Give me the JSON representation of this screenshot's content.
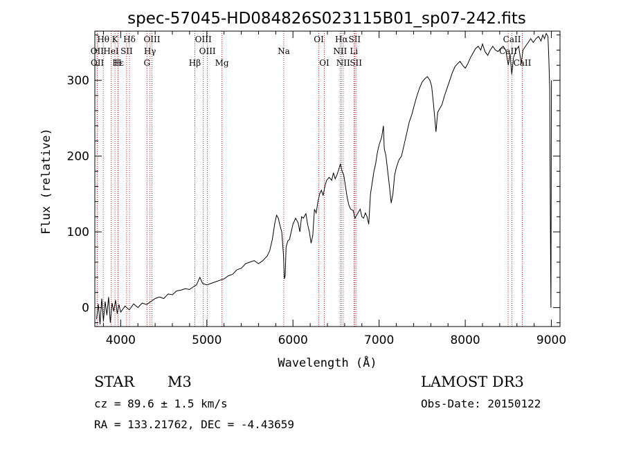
{
  "chart_data": {
    "type": "line",
    "title": "spec-57045-HD084826S023115B01_sp07-242.fits",
    "xlabel": "Wavelength (Å)",
    "ylabel": "Flux (relative)",
    "xlim": [
      3700,
      9100
    ],
    "ylim": [
      -25,
      365
    ],
    "xticks": [
      4000,
      5000,
      6000,
      7000,
      8000,
      9000
    ],
    "yticks": [
      0,
      100,
      200,
      300
    ],
    "grid": false,
    "line_color": "#000000",
    "marker_color": "#b22222",
    "series": [
      {
        "name": "spectrum",
        "points": [
          [
            3720,
            -15
          ],
          [
            3740,
            5
          ],
          [
            3760,
            -22
          ],
          [
            3780,
            12
          ],
          [
            3800,
            -18
          ],
          [
            3820,
            8
          ],
          [
            3840,
            -10
          ],
          [
            3860,
            14
          ],
          [
            3880,
            -20
          ],
          [
            3900,
            6
          ],
          [
            3920,
            -5
          ],
          [
            3940,
            10
          ],
          [
            3960,
            -8
          ],
          [
            3980,
            4
          ],
          [
            4000,
            -6
          ],
          [
            4050,
            2
          ],
          [
            4100,
            -3
          ],
          [
            4150,
            5
          ],
          [
            4200,
            0
          ],
          [
            4250,
            6
          ],
          [
            4300,
            4
          ],
          [
            4350,
            8
          ],
          [
            4400,
            12
          ],
          [
            4450,
            14
          ],
          [
            4500,
            12
          ],
          [
            4550,
            18
          ],
          [
            4600,
            17
          ],
          [
            4650,
            22
          ],
          [
            4700,
            23
          ],
          [
            4750,
            25
          ],
          [
            4800,
            24
          ],
          [
            4850,
            28
          ],
          [
            4880,
            30
          ],
          [
            4920,
            40
          ],
          [
            4950,
            32
          ],
          [
            5000,
            30
          ],
          [
            5050,
            32
          ],
          [
            5100,
            34
          ],
          [
            5150,
            36
          ],
          [
            5200,
            38
          ],
          [
            5250,
            42
          ],
          [
            5300,
            44
          ],
          [
            5350,
            50
          ],
          [
            5400,
            52
          ],
          [
            5450,
            58
          ],
          [
            5500,
            60
          ],
          [
            5550,
            62
          ],
          [
            5600,
            58
          ],
          [
            5650,
            62
          ],
          [
            5700,
            68
          ],
          [
            5730,
            75
          ],
          [
            5760,
            90
          ],
          [
            5790,
            112
          ],
          [
            5810,
            122
          ],
          [
            5830,
            118
          ],
          [
            5850,
            108
          ],
          [
            5870,
            100
          ],
          [
            5890,
            70
          ],
          [
            5900,
            38
          ],
          [
            5910,
            42
          ],
          [
            5920,
            80
          ],
          [
            5940,
            88
          ],
          [
            5960,
            90
          ],
          [
            5980,
            100
          ],
          [
            6000,
            110
          ],
          [
            6030,
            118
          ],
          [
            6060,
            112
          ],
          [
            6080,
            100
          ],
          [
            6100,
            120
          ],
          [
            6120,
            118
          ],
          [
            6150,
            124
          ],
          [
            6170,
            110
          ],
          [
            6190,
            100
          ],
          [
            6210,
            85
          ],
          [
            6230,
            95
          ],
          [
            6250,
            130
          ],
          [
            6270,
            125
          ],
          [
            6290,
            140
          ],
          [
            6310,
            150
          ],
          [
            6330,
            155
          ],
          [
            6350,
            148
          ],
          [
            6370,
            160
          ],
          [
            6390,
            168
          ],
          [
            6420,
            172
          ],
          [
            6450,
            168
          ],
          [
            6470,
            178
          ],
          [
            6490,
            170
          ],
          [
            6510,
            175
          ],
          [
            6530,
            182
          ],
          [
            6550,
            190
          ],
          [
            6570,
            180
          ],
          [
            6590,
            175
          ],
          [
            6610,
            160
          ],
          [
            6630,
            145
          ],
          [
            6650,
            135
          ],
          [
            6670,
            130
          ],
          [
            6700,
            128
          ],
          [
            6720,
            118
          ],
          [
            6750,
            124
          ],
          [
            6780,
            130
          ],
          [
            6800,
            120
          ],
          [
            6820,
            118
          ],
          [
            6840,
            125
          ],
          [
            6860,
            120
          ],
          [
            6880,
            110
          ],
          [
            6900,
            150
          ],
          [
            6920,
            165
          ],
          [
            6940,
            180
          ],
          [
            6960,
            190
          ],
          [
            6980,
            205
          ],
          [
            7000,
            215
          ],
          [
            7030,
            225
          ],
          [
            7050,
            240
          ],
          [
            7060,
            210
          ],
          [
            7080,
            200
          ],
          [
            7100,
            180
          ],
          [
            7120,
            160
          ],
          [
            7140,
            138
          ],
          [
            7160,
            150
          ],
          [
            7180,
            175
          ],
          [
            7200,
            185
          ],
          [
            7230,
            195
          ],
          [
            7260,
            200
          ],
          [
            7290,
            215
          ],
          [
            7320,
            230
          ],
          [
            7350,
            245
          ],
          [
            7380,
            255
          ],
          [
            7410,
            268
          ],
          [
            7440,
            280
          ],
          [
            7470,
            290
          ],
          [
            7500,
            298
          ],
          [
            7530,
            302
          ],
          [
            7560,
            305
          ],
          [
            7590,
            300
          ],
          [
            7610,
            292
          ],
          [
            7630,
            270
          ],
          [
            7650,
            245
          ],
          [
            7660,
            232
          ],
          [
            7680,
            258
          ],
          [
            7700,
            262
          ],
          [
            7730,
            268
          ],
          [
            7760,
            280
          ],
          [
            7790,
            290
          ],
          [
            7820,
            300
          ],
          [
            7850,
            310
          ],
          [
            7880,
            318
          ],
          [
            7910,
            322
          ],
          [
            7940,
            325
          ],
          [
            7970,
            320
          ],
          [
            8000,
            316
          ],
          [
            8030,
            322
          ],
          [
            8060,
            330
          ],
          [
            8090,
            336
          ],
          [
            8120,
            342
          ],
          [
            8150,
            345
          ],
          [
            8180,
            340
          ],
          [
            8200,
            348
          ],
          [
            8230,
            338
          ],
          [
            8260,
            333
          ],
          [
            8290,
            340
          ],
          [
            8320,
            345
          ],
          [
            8350,
            340
          ],
          [
            8380,
            338
          ],
          [
            8410,
            342
          ],
          [
            8440,
            345
          ],
          [
            8470,
            340
          ],
          [
            8500,
            320
          ],
          [
            8520,
            335
          ],
          [
            8540,
            308
          ],
          [
            8560,
            330
          ],
          [
            8590,
            340
          ],
          [
            8620,
            345
          ],
          [
            8650,
            322
          ],
          [
            8670,
            340
          ],
          [
            8700,
            345
          ],
          [
            8730,
            350
          ],
          [
            8760,
            355
          ],
          [
            8790,
            350
          ],
          [
            8820,
            355
          ],
          [
            8850,
            358
          ],
          [
            8880,
            352
          ],
          [
            8900,
            360
          ],
          [
            8920,
            355
          ],
          [
            8940,
            362
          ],
          [
            8960,
            358
          ],
          [
            8970,
            330
          ],
          [
            8980,
            290
          ],
          [
            8990,
            80
          ],
          [
            8995,
            0
          ],
          [
            9000,
            300
          ]
        ]
      }
    ],
    "line_markers": [
      {
        "label": "Hθ",
        "x": 3798,
        "row": 0
      },
      {
        "label": "K",
        "x": 3934,
        "row": 0
      },
      {
        "label": "Hδ",
        "x": 4102,
        "row": 0
      },
      {
        "label": "OIII",
        "x": 4363,
        "row": 0
      },
      {
        "label": "OIII",
        "x": 4959,
        "row": 0
      },
      {
        "label": "OI",
        "x": 6300,
        "row": 0
      },
      {
        "label": "Hα",
        "x": 6563,
        "row": 0
      },
      {
        "label": "SII",
        "x": 6716,
        "row": 0
      },
      {
        "label": "CaII",
        "x": 8542,
        "row": 0
      },
      {
        "label": "OII",
        "x": 3727,
        "row": 1
      },
      {
        "label": "HeI",
        "x": 3889,
        "row": 1
      },
      {
        "label": "SII",
        "x": 4069,
        "row": 1
      },
      {
        "label": "Hγ",
        "x": 4340,
        "row": 1
      },
      {
        "label": "OIII",
        "x": 5007,
        "row": 1
      },
      {
        "label": "Na",
        "x": 5893,
        "row": 1
      },
      {
        "label": "NII",
        "x": 6548,
        "row": 1
      },
      {
        "label": "Li",
        "x": 6708,
        "row": 1
      },
      {
        "label": "CaII",
        "x": 8498,
        "row": 1
      },
      {
        "label": "OII",
        "x": 3729,
        "row": 2
      },
      {
        "label": "Hε",
        "x": 3970,
        "row": 2
      },
      {
        "label": "H",
        "x": 3968,
        "row": 2
      },
      {
        "label": "G",
        "x": 4305,
        "row": 2
      },
      {
        "label": "Hβ",
        "x": 4861,
        "row": 2
      },
      {
        "label": "Mg",
        "x": 5175,
        "row": 2
      },
      {
        "label": "OI",
        "x": 6364,
        "row": 2
      },
      {
        "label": "NII",
        "x": 6583,
        "row": 2
      },
      {
        "label": "SII",
        "x": 6731,
        "row": 2
      },
      {
        "label": "CaII",
        "x": 8662,
        "row": 2
      }
    ]
  },
  "info": {
    "object_class": "STAR",
    "subclass": "M3",
    "survey": "LAMOST DR3",
    "redshift": "cz = 89.6 ± 1.5 km/s",
    "obs_date": "Obs-Date: 20150122",
    "coordinates": "RA = 133.21762, DEC =  -4.43659"
  }
}
